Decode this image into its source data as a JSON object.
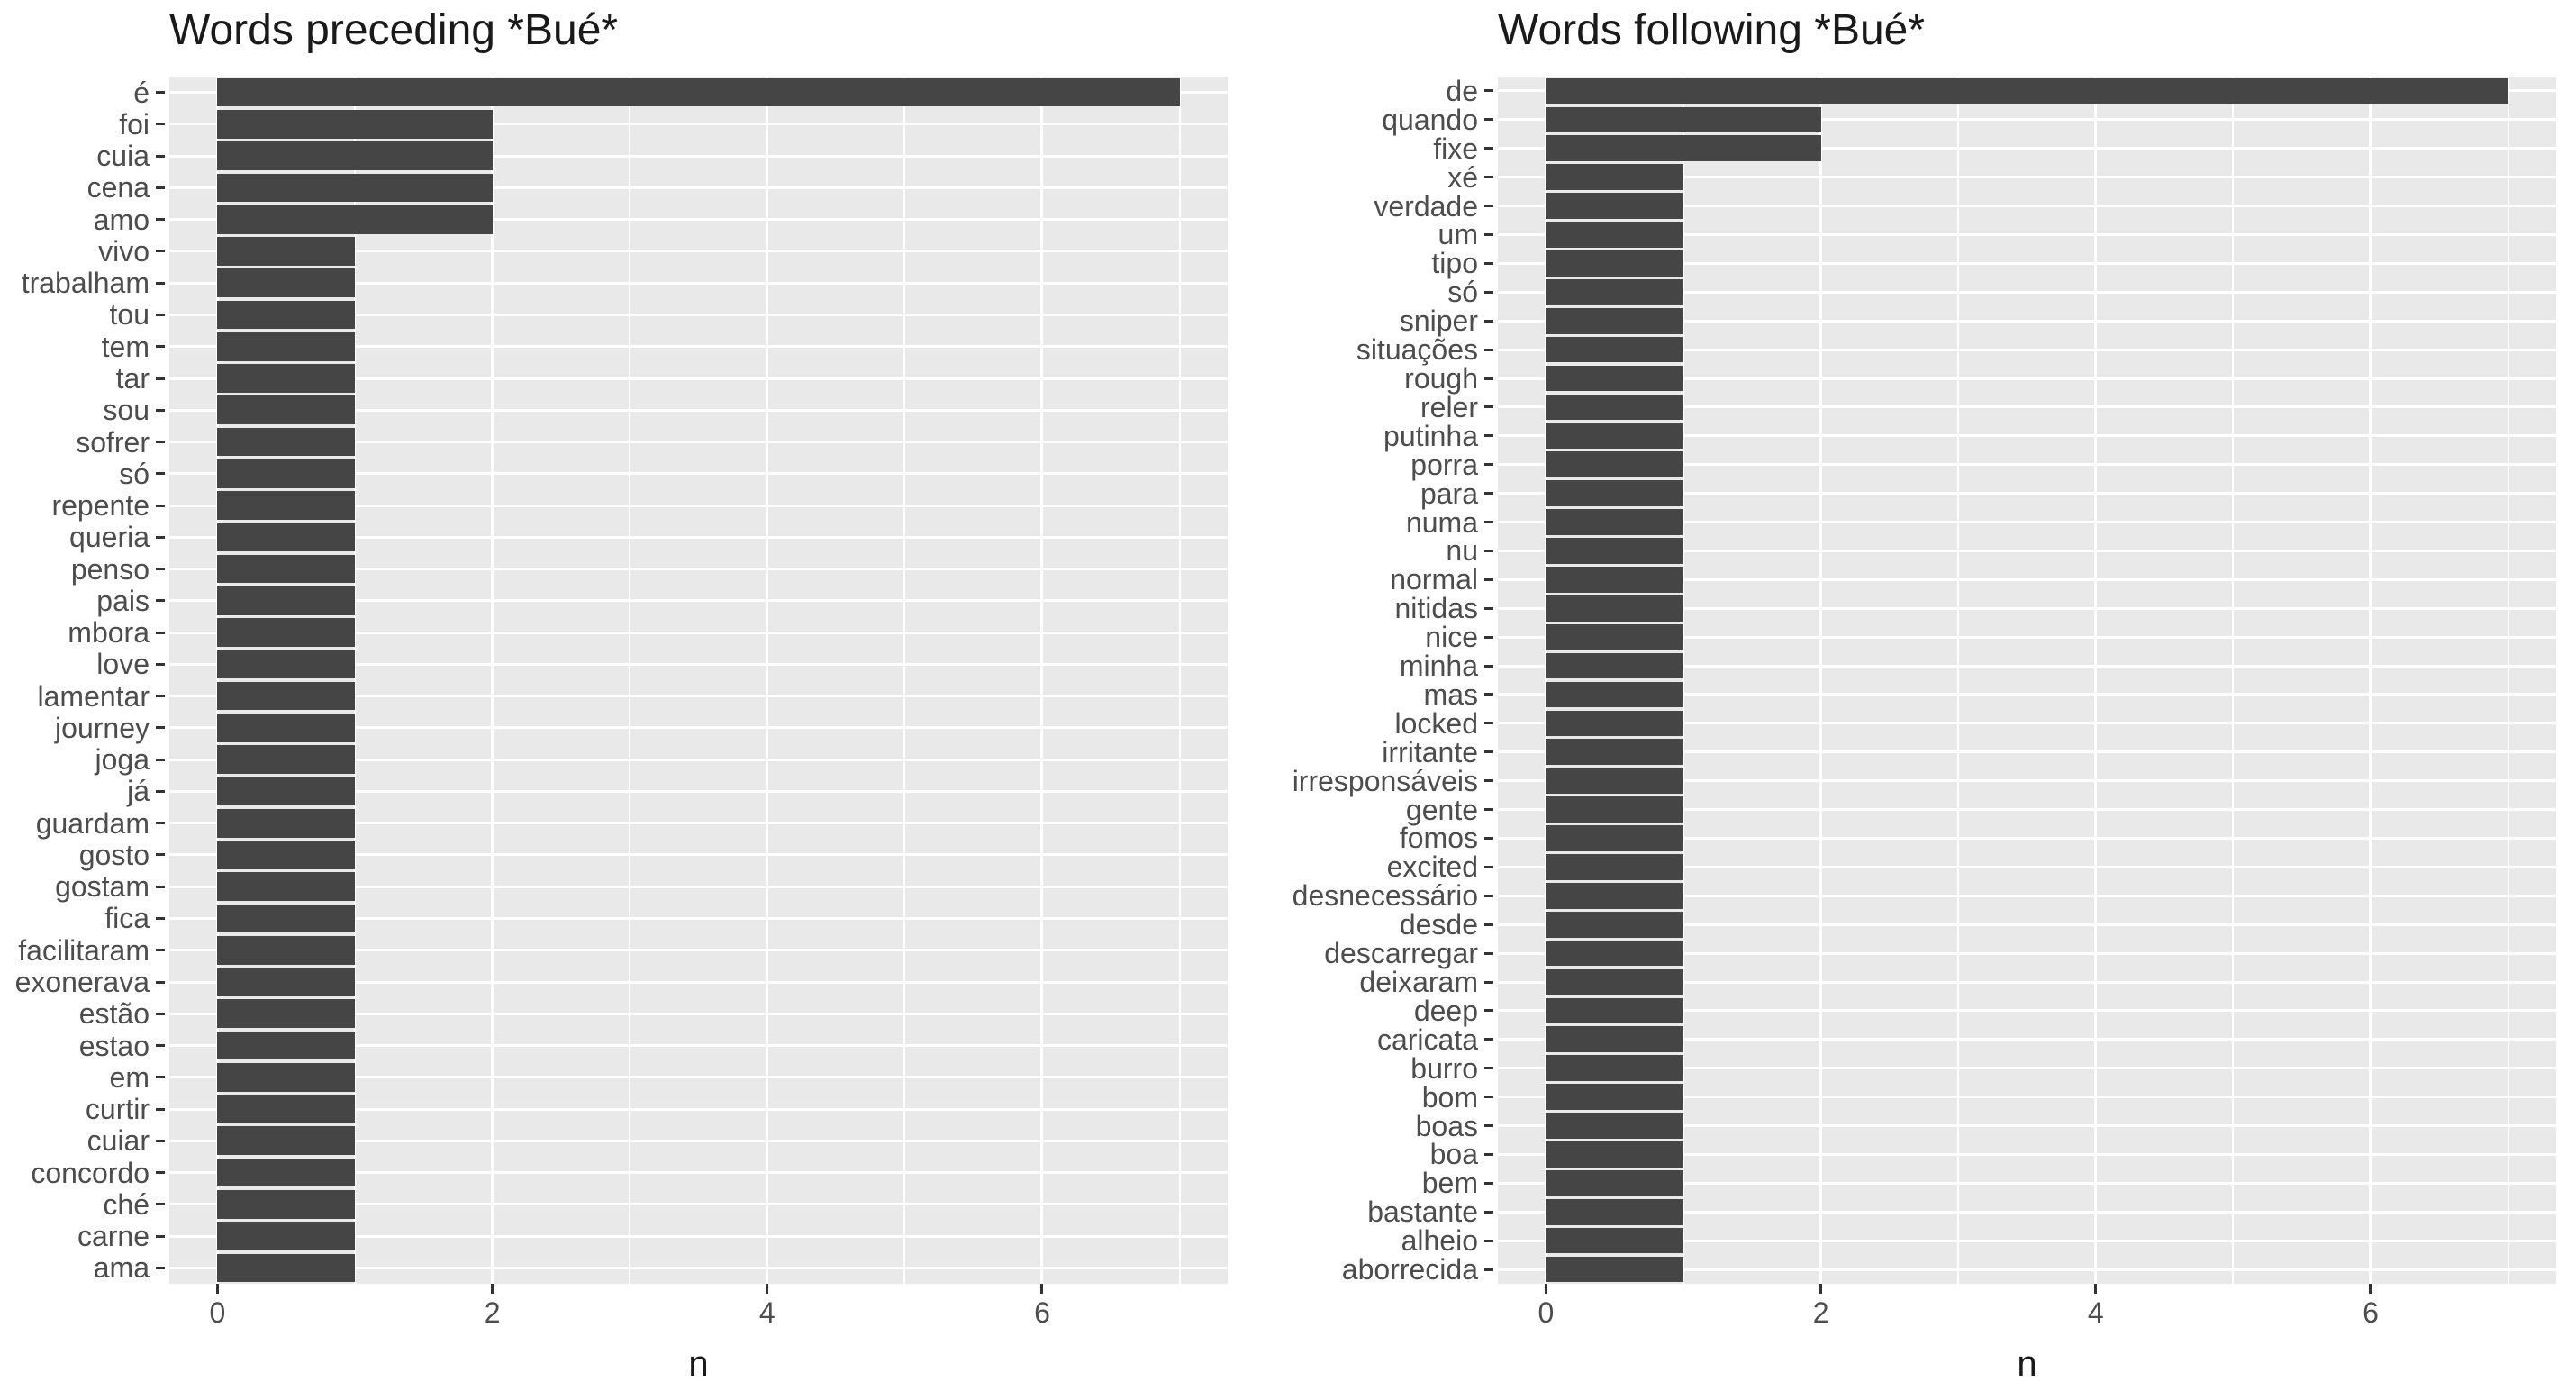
{
  "chart_data": [
    {
      "type": "bar",
      "orientation": "horizontal",
      "title": "Words preceding *Bué*",
      "xlabel": "n",
      "ylabel": "",
      "categories": [
        "é",
        "foi",
        "cuia",
        "cena",
        "amo",
        "vivo",
        "trabalham",
        "tou",
        "tem",
        "tar",
        "sou",
        "sofrer",
        "só",
        "repente",
        "queria",
        "penso",
        "pais",
        "mbora",
        "love",
        "lamentar",
        "journey",
        "joga",
        "já",
        "guardam",
        "gosto",
        "gostam",
        "fica",
        "facilitaram",
        "exonerava",
        "estão",
        "estao",
        "em",
        "curtir",
        "cuiar",
        "concordo",
        "ché",
        "carne",
        "ama"
      ],
      "values": [
        7,
        2,
        2,
        2,
        2,
        1,
        1,
        1,
        1,
        1,
        1,
        1,
        1,
        1,
        1,
        1,
        1,
        1,
        1,
        1,
        1,
        1,
        1,
        1,
        1,
        1,
        1,
        1,
        1,
        1,
        1,
        1,
        1,
        1,
        1,
        1,
        1,
        1
      ],
      "xlim": [
        -0.35,
        7.35
      ],
      "xticks": [
        0,
        2,
        4,
        6
      ],
      "xticks_minor": [
        1,
        3,
        5,
        7
      ],
      "grid": "major-and-minor, white on gray panel",
      "legend": "none",
      "panel_bg": "#e9e9e9",
      "bar_color": "#454545",
      "grid_color": "#ffffff"
    },
    {
      "type": "bar",
      "orientation": "horizontal",
      "title": "Words following *Bué*",
      "xlabel": "n",
      "ylabel": "",
      "categories": [
        "de",
        "quando",
        "fixe",
        "xé",
        "verdade",
        "um",
        "tipo",
        "só",
        "sniper",
        "situações",
        "rough",
        "reler",
        "putinha",
        "porra",
        "para",
        "numa",
        "nu",
        "normal",
        "nitidas",
        "nice",
        "minha",
        "mas",
        "locked",
        "irritante",
        "irresponsáveis",
        "gente",
        "fomos",
        "excited",
        "desnecessário",
        "desde",
        "descarregar",
        "deixaram",
        "deep",
        "caricata",
        "burro",
        "bom",
        "boas",
        "boa",
        "bem",
        "bastante",
        "alheio",
        "aborrecida"
      ],
      "values": [
        7,
        2,
        2,
        1,
        1,
        1,
        1,
        1,
        1,
        1,
        1,
        1,
        1,
        1,
        1,
        1,
        1,
        1,
        1,
        1,
        1,
        1,
        1,
        1,
        1,
        1,
        1,
        1,
        1,
        1,
        1,
        1,
        1,
        1,
        1,
        1,
        1,
        1,
        1,
        1,
        1,
        1
      ],
      "xlim": [
        -0.35,
        7.35
      ],
      "xticks": [
        0,
        2,
        4,
        6
      ],
      "xticks_minor": [
        1,
        3,
        5,
        7
      ],
      "grid": "major-and-minor, white on gray panel",
      "legend": "none",
      "panel_bg": "#e9e9e9",
      "bar_color": "#454545",
      "grid_color": "#ffffff"
    }
  ]
}
